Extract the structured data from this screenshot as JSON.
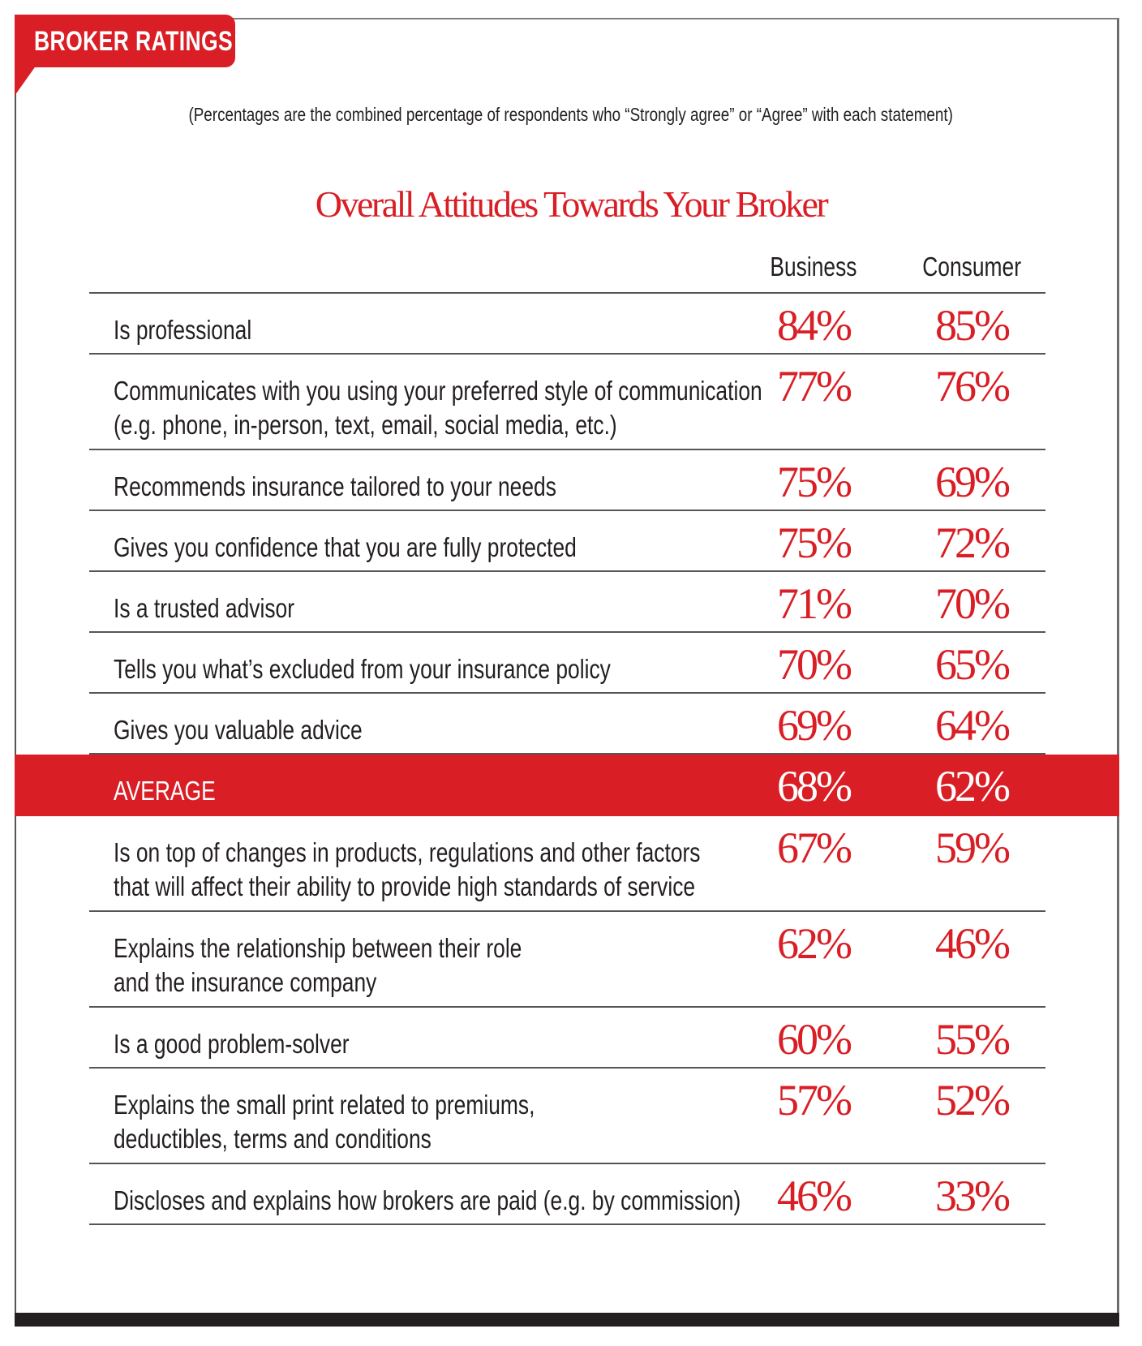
{
  "tag": "BROKER RATINGS",
  "note": "(Percentages are the combined percentage of respondents who “Strongly agree” or “Agree” with each statement)",
  "title": "Overall Attitudes Towards Your Broker",
  "columns": {
    "business": "Business",
    "consumer": "Consumer"
  },
  "colors": {
    "accent": "#d91e25",
    "text": "#231f20"
  },
  "rows": [
    {
      "label": [
        "Is professional"
      ],
      "business": "84%",
      "consumer": "85%"
    },
    {
      "label": [
        "Communicates with you using your preferred style of communication",
        "(e.g. phone, in-person, text, email, social media, etc.)"
      ],
      "business": "77%",
      "consumer": "76%"
    },
    {
      "label": [
        "Recommends insurance tailored to your needs"
      ],
      "business": "75%",
      "consumer": "69%"
    },
    {
      "label": [
        "Gives you confidence that you are fully protected"
      ],
      "business": "75%",
      "consumer": "72%"
    },
    {
      "label": [
        "Is a trusted advisor"
      ],
      "business": "71%",
      "consumer": "70%"
    },
    {
      "label": [
        "Tells you what’s excluded from your insurance policy"
      ],
      "business": "70%",
      "consumer": "65%"
    },
    {
      "label": [
        "Gives you valuable advice"
      ],
      "business": "69%",
      "consumer": "64%"
    },
    {
      "label": [
        "AVERAGE"
      ],
      "business": "68%",
      "consumer": "62%",
      "average": true
    },
    {
      "label": [
        "Is on top of changes in products, regulations and other factors",
        "that will affect their ability to provide high standards of service"
      ],
      "business": "67%",
      "consumer": "59%"
    },
    {
      "label": [
        "Explains the relationship between their role",
        "and the insurance company"
      ],
      "business": "62%",
      "consumer": "46%"
    },
    {
      "label": [
        "Is a good problem-solver"
      ],
      "business": "60%",
      "consumer": "55%"
    },
    {
      "label": [
        "Explains the small print related to premiums,",
        "deductibles, terms and conditions"
      ],
      "business": "57%",
      "consumer": "52%"
    },
    {
      "label": [
        "Discloses and explains how brokers are paid (e.g. by commission)"
      ],
      "business": "46%",
      "consumer": "33%"
    }
  ]
}
